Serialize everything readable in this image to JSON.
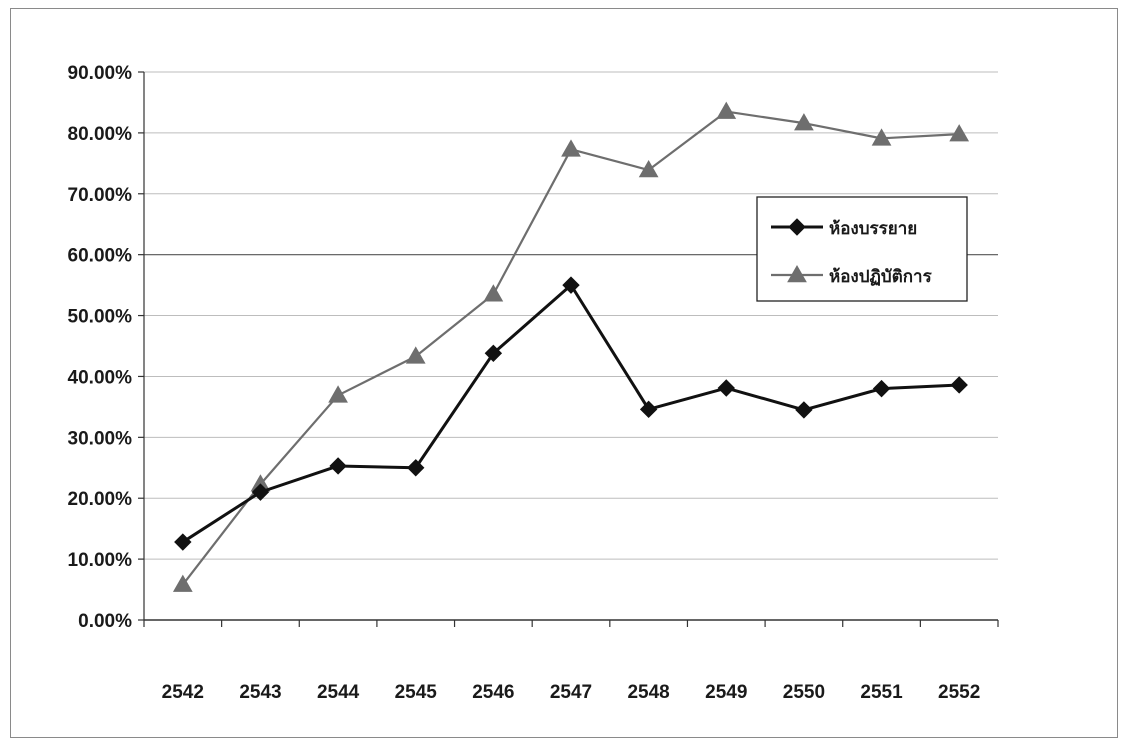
{
  "chart_data": {
    "type": "line",
    "title": "",
    "xlabel": "",
    "ylabel": "",
    "categories": [
      "2542",
      "2543",
      "2544",
      "2545",
      "2546",
      "2547",
      "2548",
      "2549",
      "2550",
      "2551",
      "2552"
    ],
    "y_tick_labels": [
      "0.00%",
      "10.00%",
      "20.00%",
      "30.00%",
      "40.00%",
      "50.00%",
      "60.00%",
      "70.00%",
      "80.00%",
      "90.00%"
    ],
    "ylim": [
      0,
      90
    ],
    "y_unit": "%",
    "grid": true,
    "legend_position": "right",
    "series": [
      {
        "name": "ห้องบรรยาย",
        "marker": "diamond",
        "color": "#111111",
        "values": [
          12.8,
          21.0,
          25.3,
          25.0,
          43.8,
          55.0,
          34.6,
          38.1,
          34.5,
          38.0,
          38.6
        ]
      },
      {
        "name": "ห้องปฏิบัติการ",
        "marker": "triangle",
        "color": "#6e6e6e",
        "values": [
          5.8,
          22.3,
          36.9,
          43.3,
          53.5,
          77.3,
          73.9,
          83.5,
          81.6,
          79.1,
          79.8
        ]
      }
    ]
  }
}
